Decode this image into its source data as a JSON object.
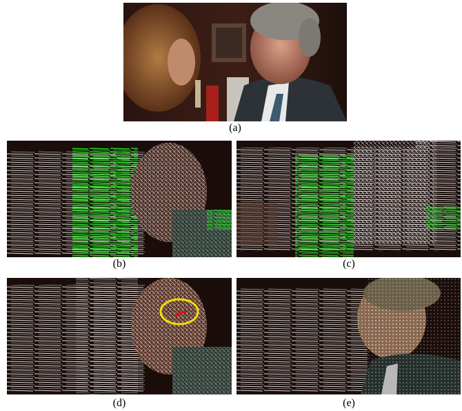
{
  "figure": {
    "panels": [
      {
        "id": "a",
        "caption": "(a)"
      },
      {
        "id": "b",
        "caption": "(b)"
      },
      {
        "id": "c",
        "caption": "(c)"
      },
      {
        "id": "d",
        "caption": "(d)"
      },
      {
        "id": "e",
        "caption": "(e)"
      }
    ]
  },
  "colors": {
    "flow_white": "#ffffff",
    "flow_green": "#22ee22",
    "highlight_ellipse": "#f2e200",
    "highlight_stroke": "#e01010",
    "background_dark": "#1a0d0a"
  }
}
